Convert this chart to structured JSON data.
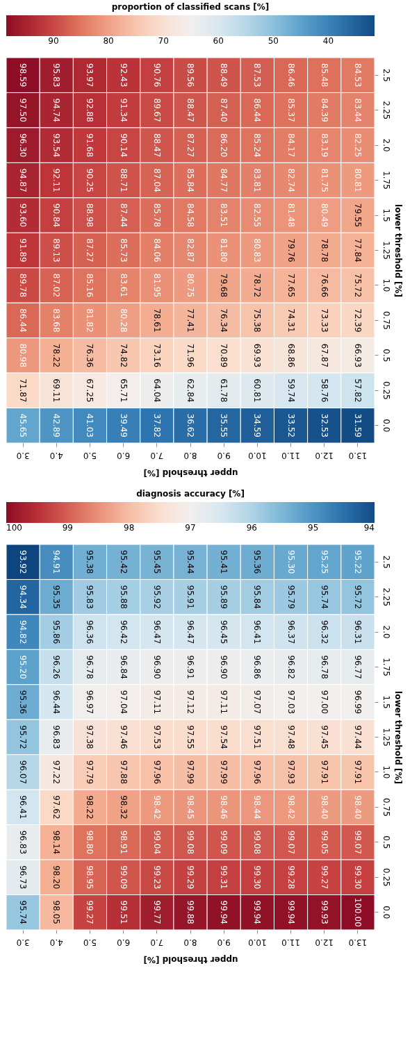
{
  "chart_data": [
    {
      "type": "heatmap",
      "xlabel": "upper threshold [%]",
      "ylabel": "lower threshold [%]",
      "clabel": "proportion of classified scans [%]",
      "categories": [
        "3.0",
        "4.0",
        "5.0",
        "6.0",
        "7.0",
        "8.0",
        "9.0",
        "10.0",
        "11.0",
        "12.0",
        "13.0"
      ],
      "y_categories": [
        "2.5",
        "2.25",
        "2.0",
        "1.75",
        "1.5",
        "1.25",
        "1.0",
        "0.75",
        "0.5",
        "0.25",
        "0.0"
      ],
      "clim": [
        98.59,
        31.59
      ],
      "cticks": [
        90,
        80,
        70,
        60,
        50,
        40
      ],
      "cells": [
        [
          98.59,
          95.83,
          93.97,
          92.43,
          90.76,
          89.56,
          88.49,
          87.53,
          86.46,
          85.48,
          84.53
        ],
        [
          97.5,
          94.74,
          92.88,
          91.34,
          89.67,
          88.47,
          87.4,
          86.44,
          85.37,
          84.39,
          83.44
        ],
        [
          96.3,
          93.54,
          91.68,
          90.14,
          88.47,
          87.27,
          86.2,
          85.24,
          84.17,
          83.19,
          82.25
        ],
        [
          94.87,
          92.11,
          90.25,
          88.71,
          87.04,
          85.84,
          84.77,
          83.81,
          82.74,
          81.75,
          80.81
        ],
        [
          93.6,
          90.84,
          88.98,
          87.44,
          85.78,
          84.58,
          83.51,
          82.55,
          81.48,
          80.49,
          79.55
        ],
        [
          91.89,
          89.13,
          87.27,
          85.73,
          84.06,
          82.87,
          81.8,
          80.83,
          79.76,
          78.78,
          77.84
        ],
        [
          89.78,
          87.02,
          85.16,
          83.61,
          81.95,
          80.75,
          79.68,
          78.72,
          77.65,
          76.66,
          75.72
        ],
        [
          86.44,
          83.68,
          81.82,
          80.28,
          78.61,
          77.41,
          76.34,
          75.38,
          74.31,
          73.33,
          72.39
        ],
        [
          80.98,
          78.22,
          76.36,
          74.82,
          73.16,
          71.96,
          70.89,
          69.93,
          68.86,
          67.87,
          66.93
        ],
        [
          71.87,
          69.11,
          67.25,
          65.71,
          64.04,
          62.84,
          61.78,
          60.81,
          59.74,
          58.76,
          57.82
        ],
        [
          45.65,
          42.89,
          41.03,
          39.49,
          37.82,
          36.62,
          35.55,
          34.59,
          33.52,
          32.53,
          31.59
        ]
      ],
      "cell_labels": [
        [
          "98.59",
          "95.83",
          "93.97",
          "92.43",
          "90.76",
          "89.56",
          "88.49",
          "87.53",
          "86.46",
          "85.48",
          "84.53"
        ],
        [
          "97.50",
          "94.74",
          "92.88",
          "91.34",
          "89.67",
          "88.47",
          "87.40",
          "86.44",
          "85.37",
          "84.39",
          "83.44"
        ],
        [
          "96.30",
          "93.54",
          "91.68",
          "90.14",
          "88.47",
          "87.27",
          "86.20",
          "85.24",
          "84.17",
          "83.19",
          "82.25"
        ],
        [
          "94.87",
          "92.11",
          "90.25",
          "88.71",
          "87.04",
          "85.84",
          "84.77",
          "83.81",
          "82.74",
          "81.75",
          "80.81"
        ],
        [
          "93.60",
          "90.84",
          "88.98",
          "87.44",
          "85.78",
          "84.58",
          "83.51",
          "82.55",
          "81.48",
          "80.49",
          "79.55"
        ],
        [
          "91.89",
          "89.13",
          "87.27",
          "85.73",
          "84.06",
          "82.87",
          "81.80",
          "80.83",
          "79.76",
          "78.78",
          "77.84"
        ],
        [
          "89.78",
          "87.02",
          "85.16",
          "83.61",
          "81.95",
          "80.75",
          "79.68",
          "78.72",
          "77.65",
          "76.66",
          "75.72"
        ],
        [
          "86.44",
          "83.68",
          "81.82",
          "80.28",
          "78.61",
          "77.41",
          "76.34",
          "75.38",
          "74.31",
          "73.33",
          "72.39"
        ],
        [
          "80.98",
          "78.22",
          "76.36",
          "74.82",
          "73.16",
          "71.96",
          "70.89",
          "69.93",
          "68.86",
          "67.87",
          "66.93"
        ],
        [
          "71.87",
          "69.11",
          "67.25",
          "65.71",
          "64.04",
          "62.84",
          "61.78",
          "60.81",
          "59.74",
          "58.76",
          "57.82"
        ],
        [
          "45.65",
          "42.89",
          "41.03",
          "39.49",
          "37.82",
          "36.62",
          "35.55",
          "34.59",
          "33.52",
          "32.53",
          "31.59"
        ]
      ]
    },
    {
      "type": "heatmap",
      "xlabel": "upper threshold [%]",
      "ylabel": "lower threshold [%]",
      "clabel": "diagnosis accuracy [%]",
      "categories": [
        "3.0",
        "4.0",
        "5.0",
        "6.0",
        "7.0",
        "8.0",
        "9.0",
        "10.0",
        "11.0",
        "12.0",
        "13.0"
      ],
      "y_categories": [
        "2.5",
        "2.25",
        "2.0",
        "1.75",
        "1.5",
        "1.25",
        "1.0",
        "0.75",
        "0.5",
        "0.25",
        "0.0"
      ],
      "clim": [
        100,
        94
      ],
      "cticks": [
        100,
        99,
        98,
        97,
        96,
        95,
        94
      ],
      "cells": [
        [
          93.92,
          94.91,
          95.38,
          95.42,
          95.45,
          95.44,
          95.41,
          95.36,
          95.3,
          95.25,
          95.22
        ],
        [
          94.34,
          95.35,
          95.83,
          95.88,
          95.92,
          95.91,
          95.89,
          95.84,
          95.79,
          95.74,
          95.72
        ],
        [
          94.82,
          95.86,
          96.36,
          96.42,
          96.47,
          96.47,
          96.45,
          96.41,
          96.37,
          96.32,
          96.31
        ],
        [
          95.2,
          96.26,
          96.78,
          96.84,
          96.9,
          96.91,
          96.9,
          96.86,
          96.82,
          96.78,
          96.77
        ],
        [
          95.36,
          96.44,
          96.97,
          97.04,
          97.11,
          97.12,
          97.11,
          97.07,
          97.03,
          97.0,
          96.99
        ],
        [
          95.72,
          96.83,
          97.38,
          97.46,
          97.53,
          97.55,
          97.54,
          97.51,
          97.48,
          97.45,
          97.44
        ],
        [
          96.07,
          97.22,
          97.79,
          97.88,
          97.96,
          97.99,
          97.99,
          97.96,
          97.93,
          97.91,
          97.91
        ],
        [
          96.41,
          97.62,
          98.22,
          98.32,
          98.42,
          98.45,
          98.46,
          98.44,
          98.42,
          98.4,
          98.4
        ],
        [
          96.83,
          98.14,
          98.8,
          98.91,
          99.04,
          99.08,
          99.09,
          99.08,
          99.07,
          99.05,
          99.07
        ],
        [
          96.73,
          98.2,
          98.95,
          99.09,
          99.23,
          99.29,
          99.31,
          99.3,
          99.28,
          99.27,
          99.3
        ],
        [
          95.74,
          98.05,
          99.27,
          99.51,
          99.77,
          99.88,
          99.94,
          99.94,
          99.94,
          99.93,
          100.0
        ]
      ],
      "cell_labels": [
        [
          "93.92",
          "94.91",
          "95.38",
          "95.42",
          "95.45",
          "95.44",
          "95.41",
          "95.36",
          "95.30",
          "95.25",
          "95.22"
        ],
        [
          "94.34",
          "95.35",
          "95.83",
          "95.88",
          "95.92",
          "95.91",
          "95.89",
          "95.84",
          "95.79",
          "95.74",
          "95.72"
        ],
        [
          "94.82",
          "95.86",
          "96.36",
          "96.42",
          "96.47",
          "96.47",
          "96.45",
          "96.41",
          "96.37",
          "96.32",
          "96.31"
        ],
        [
          "95.20",
          "96.26",
          "96.78",
          "96.84",
          "96.90",
          "96.91",
          "96.90",
          "96.86",
          "96.82",
          "96.78",
          "96.77"
        ],
        [
          "95.36",
          "96.44",
          "96.97",
          "97.04",
          "97.11",
          "97.12",
          "97.11",
          "97.07",
          "97.03",
          "97.00",
          "96.99"
        ],
        [
          "95.72",
          "96.83",
          "97.38",
          "97.46",
          "97.53",
          "97.55",
          "97.54",
          "97.51",
          "97.48",
          "97.45",
          "97.44"
        ],
        [
          "96.07",
          "97.22",
          "97.79",
          "97.88",
          "97.96",
          "97.99",
          "97.99",
          "97.96",
          "97.93",
          "97.91",
          "97.91"
        ],
        [
          "96.41",
          "97.62",
          "98.22",
          "98.32",
          "98.42",
          "98.45",
          "98.46",
          "98.44",
          "98.42",
          "98.40",
          "98.40"
        ],
        [
          "96.83",
          "98.14",
          "98.80",
          "98.91",
          "99.04",
          "99.08",
          "99.09",
          "99.08",
          "99.07",
          "99.05",
          "99.07"
        ],
        [
          "96.73",
          "98.20",
          "98.95",
          "99.09",
          "99.23",
          "99.29",
          "99.31",
          "99.30",
          "99.28",
          "99.27",
          "99.30"
        ],
        [
          "95.74",
          "98.05",
          "99.27",
          "99.51",
          "99.77",
          "99.88",
          "99.94",
          "99.94",
          "99.94",
          "99.93",
          "100.00"
        ]
      ]
    }
  ]
}
